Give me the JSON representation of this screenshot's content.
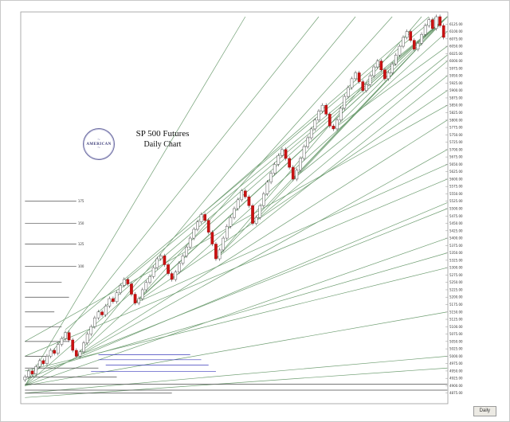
{
  "logo": {
    "flourish_top": "~",
    "name": "AMERICAN",
    "flourish_bottom": "~"
  },
  "timeframe_label": "Daily",
  "chart_data": {
    "type": "candlestick",
    "title": "SP 500 Futures",
    "subtitle": "Daily Chart",
    "x_count": 115,
    "ylim": [
      4850,
      6150
    ],
    "tick_step": 25,
    "tick_decimals": 2,
    "grid": false,
    "legend": "none",
    "colors": {
      "up": "#ffffff",
      "down": "#cc1111",
      "down_stroke": "#991111",
      "up_stroke": "#555555",
      "wick": "#444444",
      "g": "#6f9e72",
      "b": "#3b3bbd",
      "k": "#4a4a4a",
      "axis_text": "#333333",
      "frame": "#999999"
    },
    "candles": [
      [
        4920,
        4937,
        4913,
        4930
      ],
      [
        4930,
        4957,
        4923,
        4950
      ],
      [
        4950,
        4957,
        4933,
        4940
      ],
      [
        4940,
        4972,
        4933,
        4965
      ],
      [
        4965,
        4992,
        4958,
        4985
      ],
      [
        4985,
        4992,
        4968,
        4975
      ],
      [
        4975,
        5007,
        4968,
        5000
      ],
      [
        5000,
        5027,
        4993,
        5020
      ],
      [
        5020,
        5027,
        5003,
        5010
      ],
      [
        5010,
        5047,
        5003,
        5040
      ],
      [
        5040,
        5067,
        5033,
        5060
      ],
      [
        5060,
        5087,
        5053,
        5080
      ],
      [
        5080,
        5087,
        5048,
        5055
      ],
      [
        5055,
        5062,
        5013,
        5020
      ],
      [
        5020,
        5027,
        4993,
        5000
      ],
      [
        5000,
        5022,
        4993,
        5015
      ],
      [
        5015,
        5052,
        5008,
        5045
      ],
      [
        5045,
        5082,
        5038,
        5075
      ],
      [
        5075,
        5107,
        5068,
        5100
      ],
      [
        5100,
        5137,
        5093,
        5130
      ],
      [
        5130,
        5157,
        5123,
        5150
      ],
      [
        5150,
        5157,
        5133,
        5140
      ],
      [
        5140,
        5177,
        5133,
        5170
      ],
      [
        5170,
        5202,
        5163,
        5195
      ],
      [
        5195,
        5202,
        5178,
        5185
      ],
      [
        5185,
        5222,
        5178,
        5215
      ],
      [
        5215,
        5247,
        5208,
        5240
      ],
      [
        5240,
        5267,
        5233,
        5260
      ],
      [
        5260,
        5267,
        5238,
        5245
      ],
      [
        5245,
        5252,
        5203,
        5210
      ],
      [
        5210,
        5217,
        5173,
        5180
      ],
      [
        5180,
        5202,
        5173,
        5195
      ],
      [
        5195,
        5232,
        5188,
        5225
      ],
      [
        5225,
        5257,
        5218,
        5250
      ],
      [
        5250,
        5277,
        5243,
        5270
      ],
      [
        5270,
        5307,
        5263,
        5300
      ],
      [
        5300,
        5337,
        5293,
        5330
      ],
      [
        5330,
        5347,
        5323,
        5340
      ],
      [
        5340,
        5347,
        5303,
        5310
      ],
      [
        5310,
        5317,
        5273,
        5280
      ],
      [
        5280,
        5287,
        5253,
        5260
      ],
      [
        5260,
        5292,
        5253,
        5285
      ],
      [
        5285,
        5322,
        5278,
        5315
      ],
      [
        5315,
        5347,
        5308,
        5340
      ],
      [
        5340,
        5377,
        5333,
        5370
      ],
      [
        5370,
        5407,
        5363,
        5400
      ],
      [
        5400,
        5437,
        5393,
        5430
      ],
      [
        5430,
        5462,
        5423,
        5455
      ],
      [
        5455,
        5487,
        5448,
        5480
      ],
      [
        5480,
        5487,
        5453,
        5460
      ],
      [
        5460,
        5467,
        5413,
        5420
      ],
      [
        5420,
        5427,
        5373,
        5380
      ],
      [
        5380,
        5387,
        5323,
        5330
      ],
      [
        5330,
        5367,
        5323,
        5360
      ],
      [
        5360,
        5407,
        5353,
        5400
      ],
      [
        5400,
        5447,
        5393,
        5440
      ],
      [
        5440,
        5477,
        5433,
        5470
      ],
      [
        5470,
        5507,
        5463,
        5500
      ],
      [
        5500,
        5537,
        5493,
        5530
      ],
      [
        5530,
        5567,
        5523,
        5560
      ],
      [
        5560,
        5567,
        5533,
        5540
      ],
      [
        5540,
        5547,
        5503,
        5510
      ],
      [
        5510,
        5517,
        5443,
        5450
      ],
      [
        5450,
        5477,
        5443,
        5470
      ],
      [
        5470,
        5517,
        5463,
        5510
      ],
      [
        5510,
        5557,
        5503,
        5550
      ],
      [
        5550,
        5597,
        5543,
        5590
      ],
      [
        5590,
        5627,
        5583,
        5620
      ],
      [
        5620,
        5657,
        5613,
        5650
      ],
      [
        5650,
        5687,
        5643,
        5680
      ],
      [
        5680,
        5707,
        5673,
        5700
      ],
      [
        5700,
        5707,
        5663,
        5670
      ],
      [
        5670,
        5677,
        5633,
        5640
      ],
      [
        5640,
        5647,
        5593,
        5600
      ],
      [
        5600,
        5637,
        5593,
        5630
      ],
      [
        5630,
        5677,
        5623,
        5670
      ],
      [
        5670,
        5717,
        5663,
        5710
      ],
      [
        5710,
        5747,
        5703,
        5740
      ],
      [
        5740,
        5777,
        5733,
        5770
      ],
      [
        5770,
        5807,
        5763,
        5800
      ],
      [
        5800,
        5837,
        5793,
        5830
      ],
      [
        5830,
        5857,
        5823,
        5850
      ],
      [
        5850,
        5857,
        5813,
        5820
      ],
      [
        5820,
        5827,
        5773,
        5780
      ],
      [
        5780,
        5787,
        5763,
        5770
      ],
      [
        5770,
        5807,
        5763,
        5800
      ],
      [
        5800,
        5847,
        5793,
        5840
      ],
      [
        5840,
        5887,
        5833,
        5880
      ],
      [
        5880,
        5917,
        5873,
        5910
      ],
      [
        5910,
        5947,
        5903,
        5940
      ],
      [
        5940,
        5967,
        5933,
        5960
      ],
      [
        5960,
        5967,
        5923,
        5930
      ],
      [
        5930,
        5937,
        5893,
        5900
      ],
      [
        5900,
        5927,
        5893,
        5920
      ],
      [
        5920,
        5957,
        5913,
        5950
      ],
      [
        5950,
        5987,
        5943,
        5980
      ],
      [
        5980,
        6007,
        5973,
        6000
      ],
      [
        6000,
        6007,
        5963,
        5970
      ],
      [
        5970,
        5977,
        5933,
        5940
      ],
      [
        5940,
        5967,
        5933,
        5960
      ],
      [
        5960,
        5997,
        5953,
        5990
      ],
      [
        5990,
        6027,
        5983,
        6020
      ],
      [
        6020,
        6057,
        6013,
        6050
      ],
      [
        6050,
        6087,
        6043,
        6080
      ],
      [
        6080,
        6107,
        6073,
        6100
      ],
      [
        6100,
        6107,
        6063,
        6070
      ],
      [
        6070,
        6077,
        6033,
        6040
      ],
      [
        6040,
        6067,
        6033,
        6060
      ],
      [
        6060,
        6097,
        6053,
        6090
      ],
      [
        6090,
        6127,
        6083,
        6120
      ],
      [
        6120,
        6147,
        6113,
        6140
      ],
      [
        6140,
        6147,
        6103,
        6110
      ],
      [
        6110,
        6157,
        6103,
        6150
      ],
      [
        6150,
        6157,
        6113,
        6120
      ],
      [
        6120,
        6127,
        6073,
        6080
      ]
    ],
    "trendlines": [
      [
        0,
        4900,
        115,
        6150,
        "g"
      ],
      [
        0,
        4900,
        115,
        5700,
        "g"
      ],
      [
        0,
        4900,
        115,
        5400,
        "g"
      ],
      [
        0,
        4900,
        115,
        5150,
        "g"
      ],
      [
        0,
        4900,
        80,
        6150,
        "g"
      ],
      [
        0,
        4900,
        60,
        6150,
        "g"
      ],
      [
        14,
        5000,
        115,
        6150,
        "g"
      ],
      [
        14,
        5000,
        115,
        5800,
        "g"
      ],
      [
        14,
        5000,
        115,
        5500,
        "g"
      ],
      [
        14,
        5000,
        90,
        6150,
        "g"
      ],
      [
        20,
        5150,
        115,
        6150,
        "g"
      ],
      [
        30,
        5180,
        115,
        6150,
        "g"
      ],
      [
        30,
        5180,
        115,
        5900,
        "g"
      ],
      [
        30,
        5180,
        115,
        5650,
        "g"
      ],
      [
        30,
        5180,
        100,
        6150,
        "g"
      ],
      [
        52,
        5330,
        115,
        6150,
        "g"
      ],
      [
        52,
        5330,
        115,
        5950,
        "g"
      ],
      [
        52,
        5330,
        108,
        6150,
        "g"
      ],
      [
        62,
        5450,
        115,
        6150,
        "g"
      ],
      [
        62,
        5450,
        115,
        6000,
        "g"
      ],
      [
        73,
        5600,
        115,
        6150,
        "g"
      ],
      [
        73,
        5600,
        115,
        6020,
        "g"
      ],
      [
        84,
        5770,
        115,
        6150,
        "g"
      ],
      [
        84,
        5770,
        115,
        6050,
        "g"
      ],
      [
        92,
        5900,
        115,
        6150,
        "g"
      ],
      [
        11,
        5090,
        115,
        6150,
        "g"
      ],
      [
        27,
        5260,
        112,
        6150,
        "g"
      ],
      [
        48,
        5480,
        110,
        6150,
        "g"
      ],
      [
        0,
        5050,
        115,
        5850,
        "g"
      ],
      [
        0,
        5000,
        115,
        5600,
        "g"
      ],
      [
        0,
        4950,
        115,
        5300,
        "g"
      ],
      [
        0,
        4920,
        115,
        5520,
        "g"
      ],
      [
        0,
        4875,
        115,
        5000,
        "g"
      ],
      [
        0,
        4860,
        115,
        4960,
        "g"
      ],
      [
        40,
        5260,
        115,
        6100,
        "g"
      ],
      [
        6,
        4960,
        115,
        5350,
        "g"
      ]
    ],
    "hlines": [
      [
        5525,
        0,
        14,
        "k",
        "175"
      ],
      [
        5450,
        0,
        14,
        "k",
        "150"
      ],
      [
        5380,
        0,
        14,
        "k",
        "125"
      ],
      [
        5305,
        0,
        14,
        "k",
        "100"
      ],
      [
        5250,
        0,
        10,
        "k",
        ""
      ],
      [
        5200,
        0,
        12,
        "k",
        ""
      ],
      [
        5150,
        0,
        8,
        "k",
        ""
      ],
      [
        5100,
        0,
        10,
        "k",
        ""
      ],
      [
        5050,
        0,
        12,
        "k",
        ""
      ],
      [
        5000,
        0,
        6,
        "k",
        ""
      ],
      [
        4960,
        0,
        20,
        "k",
        ""
      ],
      [
        4930,
        0,
        25,
        "k",
        ""
      ],
      [
        4905,
        0,
        115,
        "k",
        ""
      ],
      [
        4885,
        0,
        115,
        "k",
        ""
      ],
      [
        4875,
        0,
        40,
        "k",
        ""
      ],
      [
        5005,
        20,
        45,
        "b",
        ""
      ],
      [
        4988,
        20,
        48,
        "b",
        ""
      ],
      [
        4970,
        22,
        50,
        "b",
        ""
      ],
      [
        4948,
        18,
        52,
        "b",
        ""
      ]
    ]
  }
}
